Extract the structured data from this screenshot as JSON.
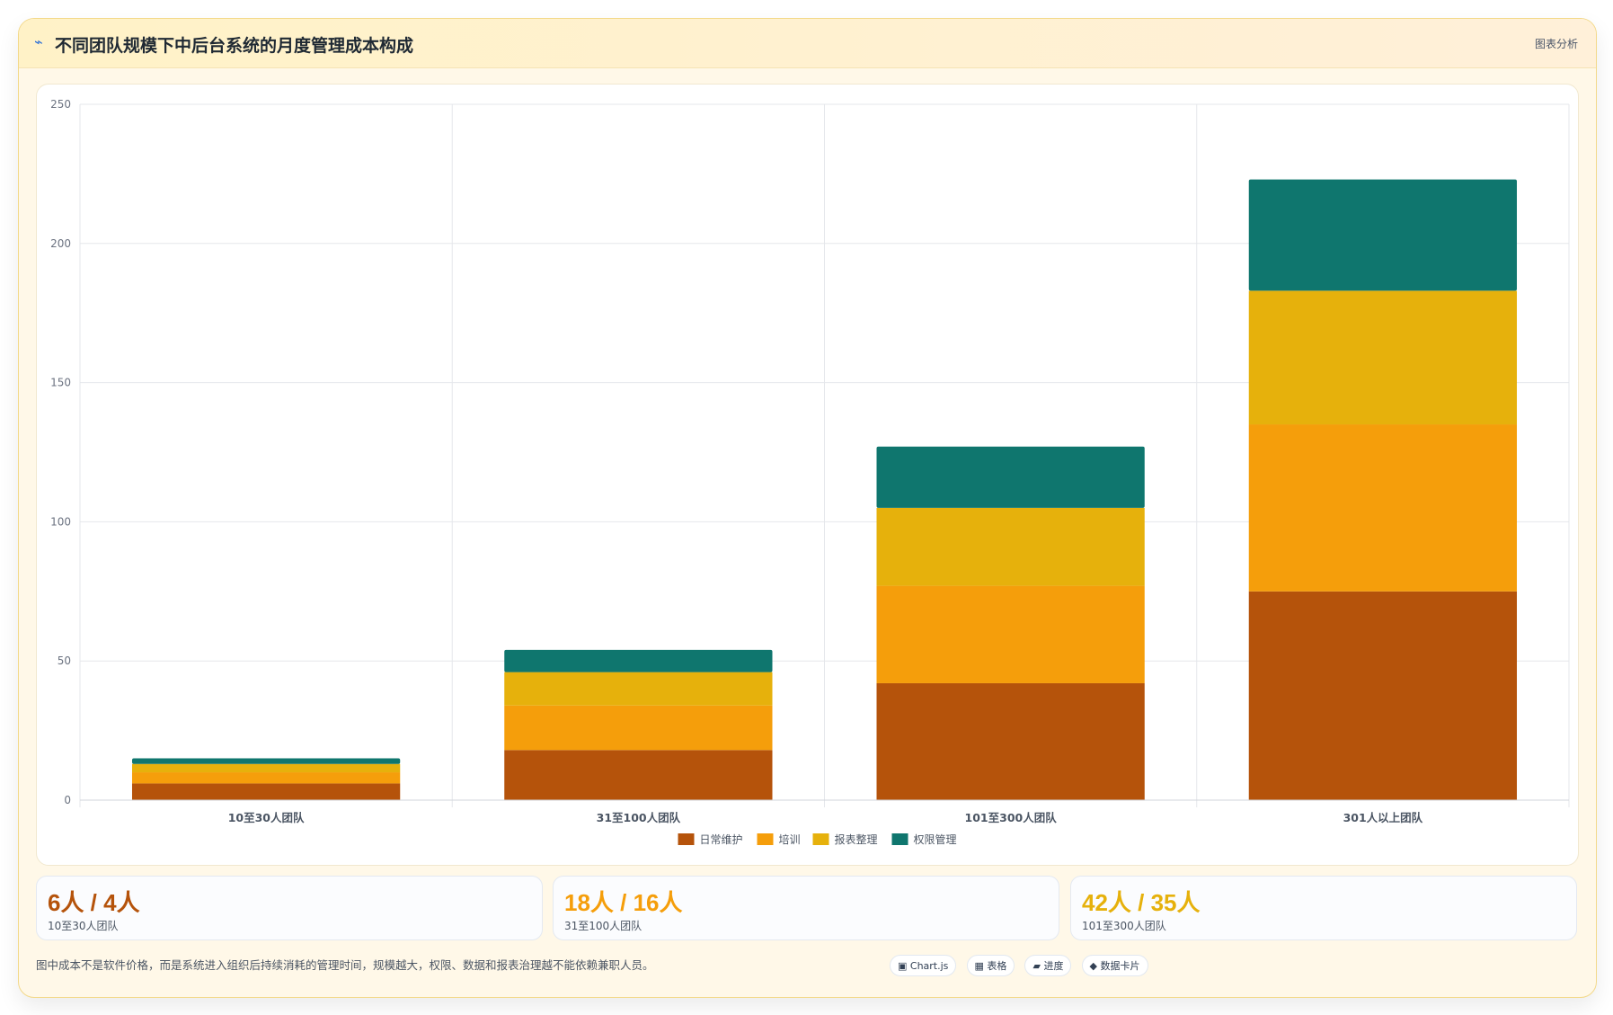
{
  "header": {
    "icon": "pulse-icon",
    "title": "不同团队规模下中后台系统的月度管理成本构成",
    "link_label": "图表分析"
  },
  "chart_data": {
    "type": "bar",
    "stacked": true,
    "categories": [
      "10至30人团队",
      "31至100人团队",
      "101至300人团队",
      "301人以上团队"
    ],
    "series": [
      {
        "name": "日常维护",
        "color": "#b5530b",
        "values": [
          6,
          18,
          42,
          75
        ]
      },
      {
        "name": "培训",
        "color": "#f59e0b",
        "values": [
          4,
          16,
          35,
          60
        ]
      },
      {
        "name": "报表整理",
        "color": "#e6b10c",
        "values": [
          3,
          12,
          28,
          48
        ]
      },
      {
        "name": "权限管理",
        "color": "#0f766e",
        "values": [
          2,
          8,
          22,
          40
        ]
      }
    ],
    "ylim": [
      0,
      250
    ],
    "yticks": [
      0,
      50,
      100,
      150,
      200,
      250
    ],
    "grid": true,
    "legend": "bottom"
  },
  "stats": [
    {
      "value": "6人 / 4人",
      "label": "10至30人团队",
      "color": "#b5530b"
    },
    {
      "value": "18人 / 16人",
      "label": "31至100人团队",
      "color": "#f59e0b"
    },
    {
      "value": "42人 / 35人",
      "label": "101至300人团队",
      "color": "#e6b10c"
    }
  ],
  "footnote": "图中成本不是软件价格，而是系统进入组织后持续消耗的管理时间，规模越大，权限、数据和报表治理越不能依赖兼职人员。",
  "tags": [
    {
      "label": "▣ Chart.js",
      "icon": "chart-icon"
    },
    {
      "label": "▦ 表格",
      "icon": "table-icon"
    },
    {
      "label": "▰ 进度",
      "icon": "progress-icon"
    },
    {
      "label": "◆ 数据卡片",
      "icon": "card-icon"
    }
  ]
}
